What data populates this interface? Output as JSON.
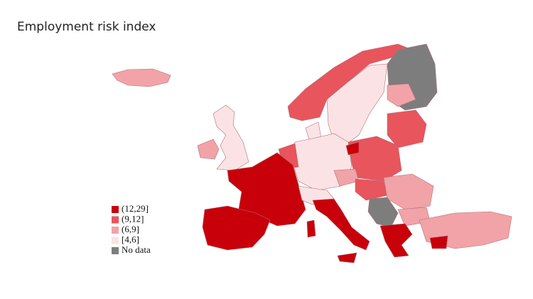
{
  "title": "Employment risk index",
  "legend": [
    {
      "label": "(12,29]",
      "color": "#c8000a"
    },
    {
      "label": "(9,12]",
      "color": "#e8555c"
    },
    {
      "label": "(6,9]",
      "color": "#f2a3a7"
    },
    {
      "label": "[4,6]",
      "color": "#fbe3e5"
    },
    {
      "label": "No data",
      "color": "#7d7d7d"
    }
  ]
}
